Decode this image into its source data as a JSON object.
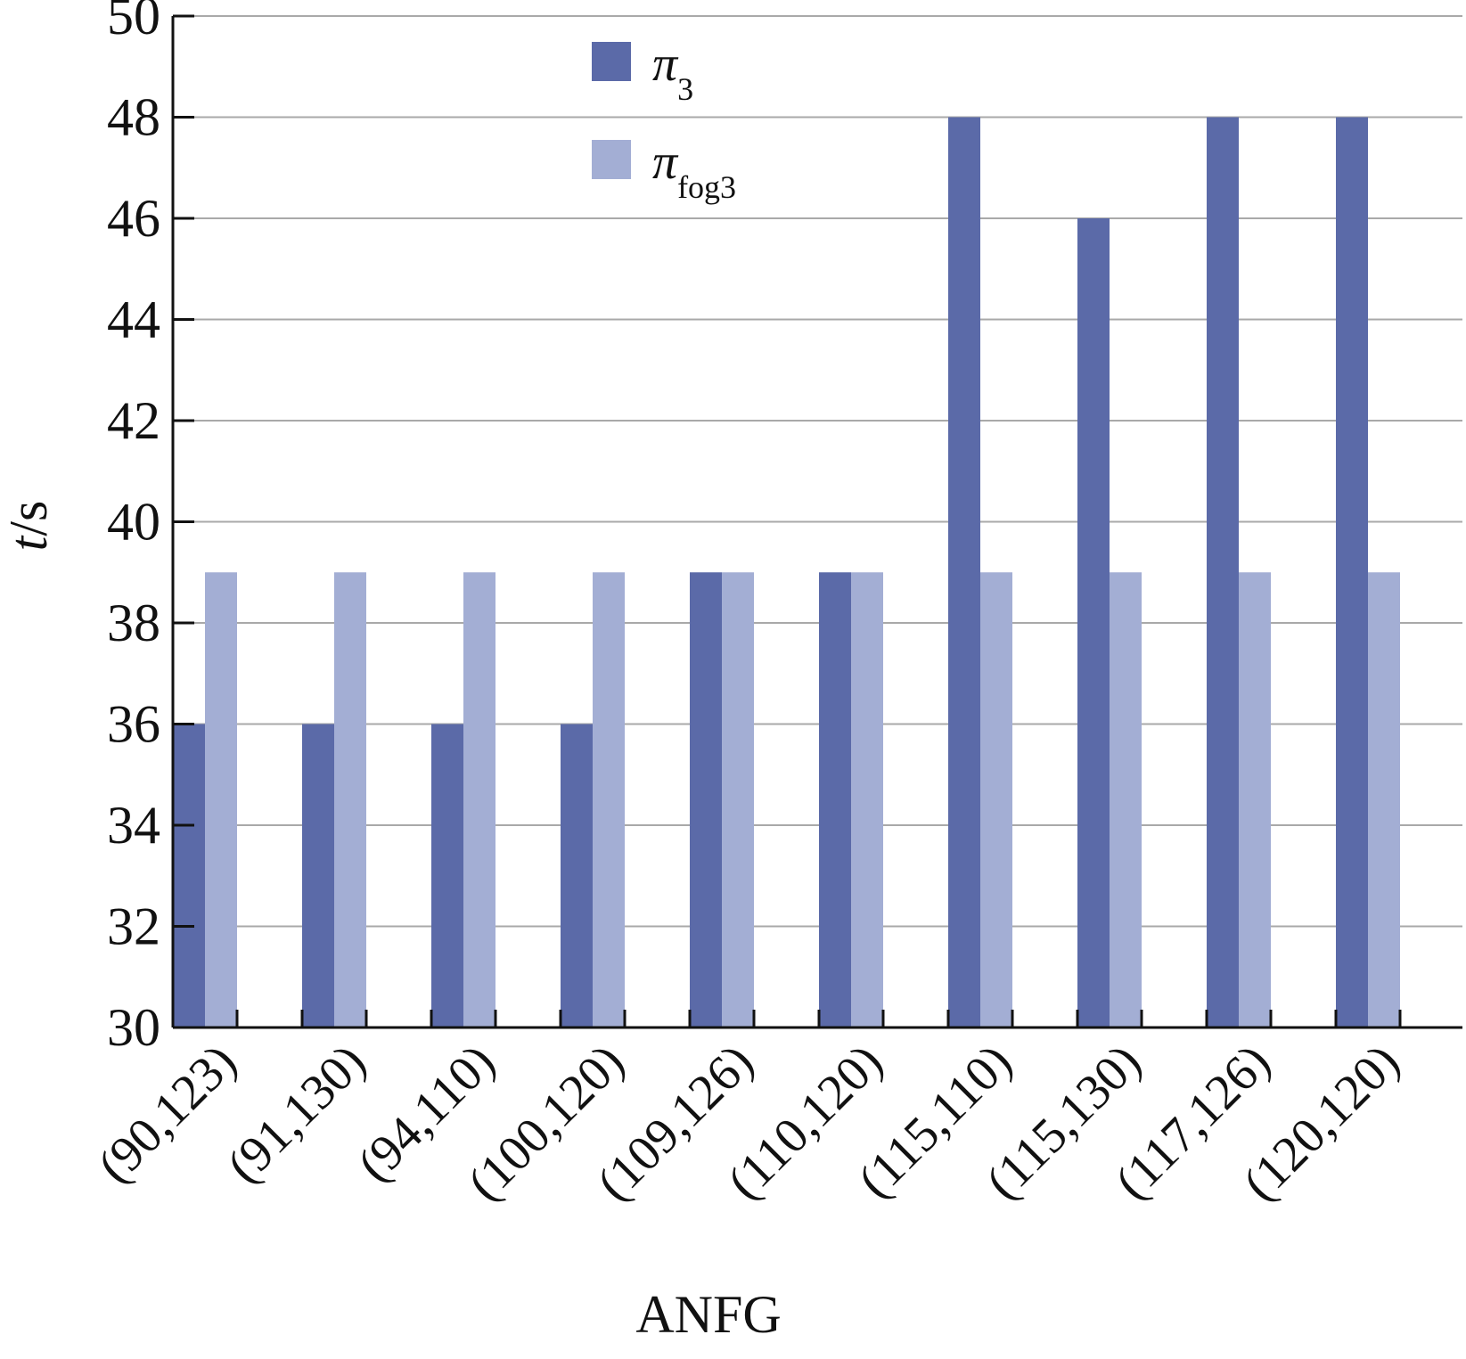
{
  "chart_data": {
    "type": "bar",
    "xlabel": "ANFG",
    "ylabel": {
      "main": "t",
      "unit": "/s"
    },
    "ylim": [
      30,
      50
    ],
    "yticks": [
      30,
      32,
      34,
      36,
      38,
      40,
      42,
      44,
      46,
      48,
      50
    ],
    "grid": true,
    "legend_position": "top-center",
    "categories": [
      "(90,123)",
      "(91,130)",
      "(94,110)",
      "(100,120)",
      "(109,126)",
      "(110,120)",
      "(115,110)",
      "(115,130)",
      "(117,126)",
      "(120,120)"
    ],
    "series": [
      {
        "name": "π",
        "subscript": "3",
        "color": "#5b6aa8",
        "values": [
          36,
          36,
          36,
          36,
          39,
          39,
          48,
          46,
          48,
          48
        ]
      },
      {
        "name": "π",
        "subscript": "fog3",
        "color": "#a3aed4",
        "values": [
          39,
          39,
          39,
          39,
          39,
          39,
          39,
          39,
          39,
          39
        ]
      }
    ]
  }
}
